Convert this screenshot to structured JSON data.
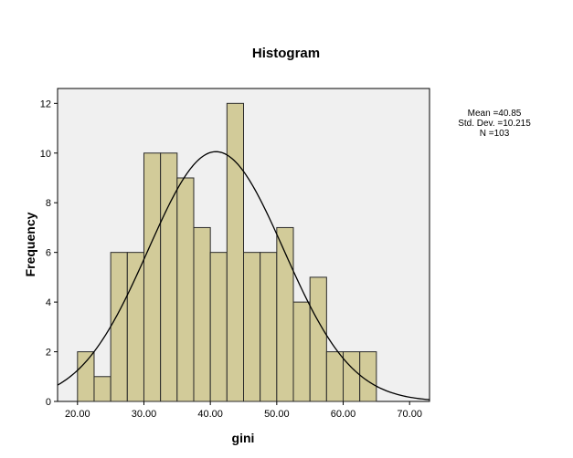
{
  "chart_data": {
    "type": "bar",
    "title": "Histogram",
    "xlabel": "gini",
    "ylabel": "Frequency",
    "bin_edges": [
      20.0,
      22.5,
      25.0,
      27.5,
      30.0,
      32.5,
      35.0,
      37.5,
      40.0,
      42.5,
      45.0,
      47.5,
      50.0,
      52.5,
      55.0,
      57.5,
      60.0,
      62.5,
      65.0
    ],
    "values": [
      2,
      1,
      6,
      6,
      10,
      10,
      9,
      7,
      6,
      12,
      6,
      6,
      7,
      4,
      5,
      2,
      2,
      2
    ],
    "xlim": [
      17.0,
      73.0
    ],
    "ylim": [
      0,
      12.6
    ],
    "x_ticks": [
      "20.00",
      "30.00",
      "40.00",
      "50.00",
      "60.00",
      "70.00"
    ],
    "y_ticks": [
      "0",
      "2",
      "4",
      "6",
      "8",
      "10",
      "12"
    ],
    "normal_curve": {
      "mean": 40.85,
      "std": 10.215,
      "n": 103
    },
    "stats": {
      "mean": "Mean =40.85",
      "std": "Std. Dev. =10.215",
      "n": "N =103"
    },
    "grid": false,
    "colors": {
      "bar_fill": "#d2cb99",
      "bar_stroke": "#2a2a2a",
      "plot_bg": "#f0f0f0",
      "curve": "#000000"
    }
  }
}
